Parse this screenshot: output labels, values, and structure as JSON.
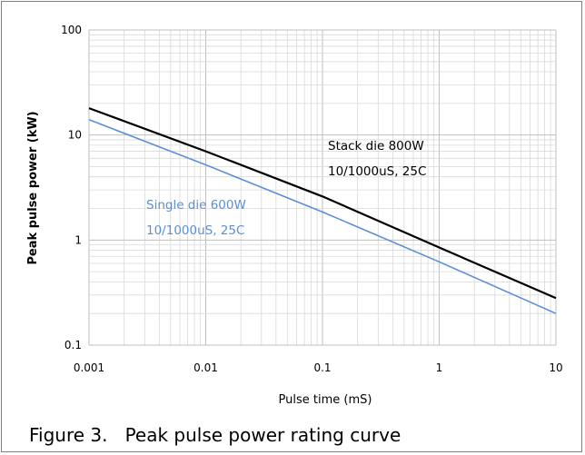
{
  "caption": "Figure 3.   Peak pulse power rating curve",
  "colors": {
    "stack": "#000000",
    "single": "#5b8fd6",
    "grid": "#d9d9d9",
    "axis": "#bfbfbf"
  },
  "chart_data": {
    "type": "line",
    "title": "",
    "xlabel": "Pulse time (mS)",
    "ylabel": "Peak pulse power (kW)",
    "x_scale": "log",
    "y_scale": "log",
    "xlim": [
      0.001,
      10
    ],
    "ylim": [
      0.1,
      100
    ],
    "x_ticks": [
      "0.001",
      "0.01",
      "0.1",
      "1",
      "10"
    ],
    "y_ticks": [
      "0.1",
      "1",
      "10",
      "100"
    ],
    "grid": true,
    "series": [
      {
        "name": "Stack die 800W",
        "annotation": [
          "Stack die 800W",
          "10/1000uS, 25C"
        ],
        "color": "#000000",
        "x": [
          0.001,
          0.01,
          0.1,
          1,
          10
        ],
        "y": [
          18,
          7.0,
          2.6,
          0.85,
          0.28
        ]
      },
      {
        "name": "Single die 600W",
        "annotation": [
          "Single die 600W",
          "10/1000uS, 25C"
        ],
        "color": "#5b8fd6",
        "x": [
          0.001,
          0.01,
          0.1,
          1,
          10
        ],
        "y": [
          14,
          5.2,
          1.85,
          0.62,
          0.2
        ]
      }
    ]
  }
}
